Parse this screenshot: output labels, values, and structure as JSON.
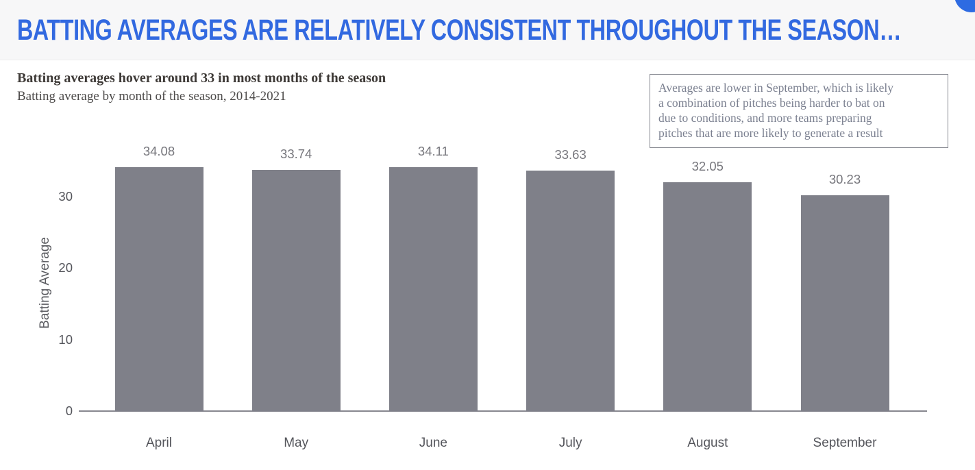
{
  "header": {
    "title": "BATTING AVERAGES ARE RELATIVELY CONSISTENT THROUGHOUT THE SEASON…"
  },
  "chart_header": {
    "title": "Batting averages hover around 33 in most months of the season",
    "subtitle": "Batting average by month of the season, 2014-2021"
  },
  "annotation": {
    "text": "Averages are lower in September, which is likely\na combination of pitches being harder to bat on\ndue to conditions, and more teams preparing\npitches that are more likely to generate a result"
  },
  "colors": {
    "accent_blue": "#3269E0",
    "corner_circle_blue": "#2E6BE2",
    "bar_gray": "#7F8089",
    "axis_line_gray": "#87878F",
    "tick_label_gray": "#54555B",
    "value_label_gray": "#76767C",
    "header_band_bg": "#F7F7F8"
  },
  "chart_data": {
    "type": "bar",
    "categories": [
      "April",
      "May",
      "June",
      "July",
      "August",
      "September"
    ],
    "values": [
      34.08,
      33.74,
      34.11,
      33.63,
      32.05,
      30.23
    ],
    "value_labels": [
      "34.08",
      "33.74",
      "34.11",
      "33.63",
      "32.05",
      "30.23"
    ],
    "title": "Batting averages hover around 33 in most months of the season",
    "subtitle": "Batting average by month of the season, 2014-2021",
    "xlabel": "",
    "ylabel": "Batting Average",
    "yticks": [
      0,
      10,
      20,
      30
    ],
    "ylim": [
      0,
      36
    ],
    "grid": false,
    "legend": false,
    "bar_color": "#7F8089"
  }
}
